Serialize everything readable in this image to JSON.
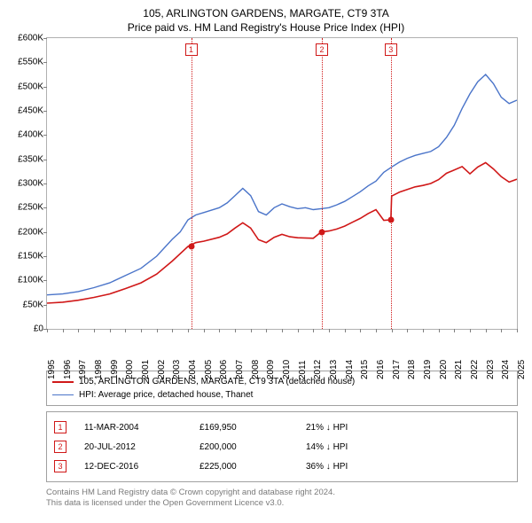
{
  "title1": "105, ARLINGTON GARDENS, MARGATE, CT9 3TA",
  "title2": "Price paid vs. HM Land Registry's House Price Index (HPI)",
  "chart": {
    "type": "line",
    "background_color": "#ffffff",
    "border_color": "#b0b0b0",
    "ylim": [
      0,
      600
    ],
    "ytick_step": 50,
    "ytick_prefix": "£",
    "ytick_suffix": "K",
    "xlim": [
      1995,
      2025
    ],
    "xticks": [
      1995,
      1996,
      1997,
      1998,
      1999,
      2000,
      2001,
      2002,
      2003,
      2004,
      2005,
      2006,
      2007,
      2008,
      2009,
      2010,
      2011,
      2012,
      2013,
      2014,
      2015,
      2016,
      2017,
      2018,
      2019,
      2020,
      2021,
      2022,
      2023,
      2024,
      2025
    ],
    "series": [
      {
        "name": "hpi",
        "label": "HPI: Average price, detached house, Thanet",
        "color": "#4a74c9",
        "width": 1.4,
        "data": [
          [
            1995,
            70
          ],
          [
            1996,
            72
          ],
          [
            1997,
            77
          ],
          [
            1998,
            85
          ],
          [
            1999,
            95
          ],
          [
            2000,
            110
          ],
          [
            2001,
            125
          ],
          [
            2002,
            150
          ],
          [
            2003,
            185
          ],
          [
            2003.5,
            200
          ],
          [
            2004,
            225
          ],
          [
            2004.5,
            235
          ],
          [
            2005,
            240
          ],
          [
            2006,
            250
          ],
          [
            2006.5,
            260
          ],
          [
            2007,
            275
          ],
          [
            2007.5,
            290
          ],
          [
            2008,
            275
          ],
          [
            2008.5,
            242
          ],
          [
            2009,
            235
          ],
          [
            2009.5,
            250
          ],
          [
            2010,
            258
          ],
          [
            2010.5,
            252
          ],
          [
            2011,
            248
          ],
          [
            2011.5,
            250
          ],
          [
            2012,
            246
          ],
          [
            2012.5,
            248
          ],
          [
            2013,
            250
          ],
          [
            2013.5,
            256
          ],
          [
            2014,
            263
          ],
          [
            2014.5,
            273
          ],
          [
            2015,
            283
          ],
          [
            2015.5,
            295
          ],
          [
            2016,
            305
          ],
          [
            2016.5,
            323
          ],
          [
            2017,
            334
          ],
          [
            2017.5,
            344
          ],
          [
            2018,
            352
          ],
          [
            2018.5,
            358
          ],
          [
            2019,
            362
          ],
          [
            2019.5,
            366
          ],
          [
            2020,
            376
          ],
          [
            2020.5,
            395
          ],
          [
            2021,
            420
          ],
          [
            2021.5,
            455
          ],
          [
            2022,
            485
          ],
          [
            2022.5,
            510
          ],
          [
            2023,
            525
          ],
          [
            2023.5,
            506
          ],
          [
            2024,
            478
          ],
          [
            2024.5,
            465
          ],
          [
            2025,
            472
          ]
        ]
      },
      {
        "name": "property",
        "label": "105, ARLINGTON GARDENS, MARGATE, CT9 3TA (detached house)",
        "color": "#d01818",
        "width": 1.6,
        "data": [
          [
            1995,
            53
          ],
          [
            1996,
            55
          ],
          [
            1997,
            59
          ],
          [
            1998,
            65
          ],
          [
            1999,
            72
          ],
          [
            2000,
            83
          ],
          [
            2001,
            95
          ],
          [
            2002,
            113
          ],
          [
            2003,
            140
          ],
          [
            2004,
            170
          ],
          [
            2004.5,
            178
          ],
          [
            2005,
            181
          ],
          [
            2006,
            189
          ],
          [
            2006.5,
            196
          ],
          [
            2007,
            208
          ],
          [
            2007.5,
            219
          ],
          [
            2008,
            208
          ],
          [
            2008.5,
            184
          ],
          [
            2009,
            178
          ],
          [
            2009.5,
            189
          ],
          [
            2010,
            195
          ],
          [
            2010.5,
            190
          ],
          [
            2011,
            188
          ],
          [
            2012,
            187
          ],
          [
            2012.5,
            200
          ],
          [
            2013,
            202
          ],
          [
            2013.5,
            206
          ],
          [
            2014,
            212
          ],
          [
            2014.5,
            220
          ],
          [
            2015,
            228
          ],
          [
            2015.5,
            238
          ],
          [
            2016,
            246
          ],
          [
            2016.5,
            224
          ],
          [
            2016.95,
            225
          ],
          [
            2017,
            274
          ],
          [
            2017.5,
            282
          ],
          [
            2018.5,
            293
          ],
          [
            2019,
            296
          ],
          [
            2019.5,
            300
          ],
          [
            2020,
            308
          ],
          [
            2020.5,
            321
          ],
          [
            2021.5,
            335
          ],
          [
            2022,
            320
          ],
          [
            2022.5,
            334
          ],
          [
            2023,
            343
          ],
          [
            2023.5,
            330
          ],
          [
            2024,
            314
          ],
          [
            2024.5,
            303
          ],
          [
            2025,
            309
          ]
        ]
      }
    ],
    "vlines": [
      {
        "x": 2004.2,
        "color": "#d01818",
        "label": "1"
      },
      {
        "x": 2012.55,
        "color": "#d01818",
        "label": "2"
      },
      {
        "x": 2016.95,
        "color": "#d01818",
        "label": "3"
      }
    ],
    "points": [
      {
        "x": 2004.2,
        "y": 170
      },
      {
        "x": 2012.55,
        "y": 200
      },
      {
        "x": 2016.95,
        "y": 225
      }
    ]
  },
  "legend": {
    "items": [
      {
        "color": "#d01818",
        "width": 2,
        "key": "property"
      },
      {
        "color": "#4a74c9",
        "width": 1.5,
        "key": "hpi"
      }
    ]
  },
  "sales_table": {
    "rows": [
      {
        "n": "1",
        "date": "11-MAR-2004",
        "price": "£169,950",
        "delta": "21% ↓ HPI"
      },
      {
        "n": "2",
        "date": "20-JUL-2012",
        "price": "£200,000",
        "delta": "14% ↓ HPI"
      },
      {
        "n": "3",
        "date": "12-DEC-2016",
        "price": "£225,000",
        "delta": "36% ↓ HPI"
      }
    ]
  },
  "footer_line1": "Contains HM Land Registry data © Crown copyright and database right 2024.",
  "footer_line2": "This data is licensed under the Open Government Licence v3.0."
}
